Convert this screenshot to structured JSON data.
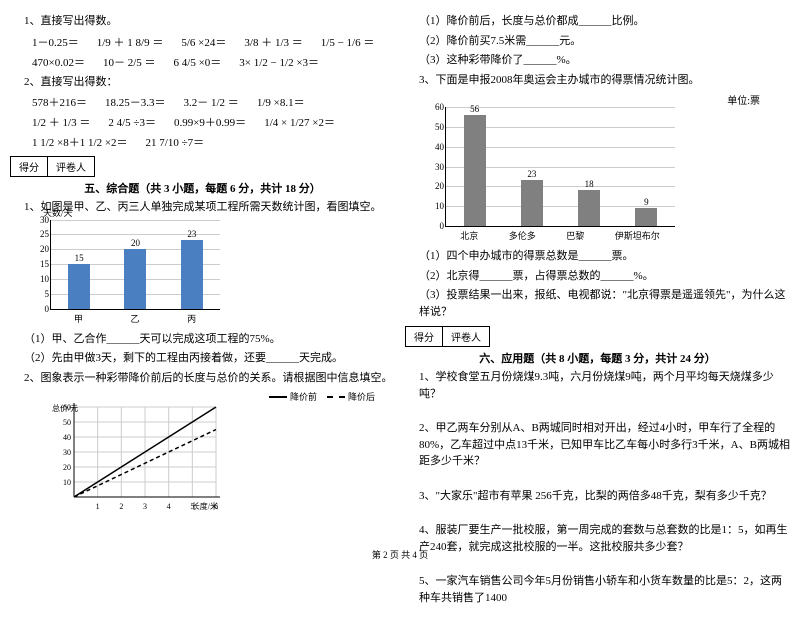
{
  "left": {
    "q1": {
      "title": "1、直接写出得数。"
    },
    "eq1": [
      "1－0.25＝",
      "1/9 ＋ 1 8/9 ＝",
      "5/6 ×24＝",
      "3/8 ＋ 1/3 ＝",
      "1/5 − 1/6 ＝",
      "470×0.02＝",
      "10－ 2/5 ＝",
      "6 4/5 ×0＝",
      "3× 1/2 − 1/2 ×3＝"
    ],
    "q2": {
      "title": "2、直接写出得数："
    },
    "eq2": [
      "578＋216＝",
      "18.25－3.3＝",
      "3.2－ 1/2 ＝",
      "1/9 ×8.1＝",
      "1/2 ＋ 1/3 ＝",
      "2 4/5 ÷3＝",
      "0.99×9＋0.99＝",
      "1/4 × 1/27 ×2＝",
      "1 1/2 ×8＋1 1/2 ×2＝",
      "21 7/10 ÷7＝"
    ],
    "score": [
      "得分",
      "评卷人"
    ],
    "sec5": "五、综合题（共 3 小题，每题 6 分，共计 18 分）",
    "p1": "1、如图是甲、乙、丙三人单独完成某项工程所需天数统计图，看图填空。",
    "chart1": {
      "type": "bar",
      "ytitle": "天数/天",
      "ymax": 30,
      "ystep": 5,
      "bar_color": "#4a7fc1",
      "grid_color": "#cccccc",
      "categories": [
        "甲",
        "乙",
        "丙"
      ],
      "values": [
        15,
        20,
        23
      ]
    },
    "p1_sub1": "（1）甲、乙合作______天可以完成这项工程的75%。",
    "p1_sub2": "（2）先由甲做3天，剩下的工程由丙接着做，还要______天完成。",
    "p2": "2、图象表示一种彩带降价前后的长度与总价的关系。请根据图中信息填空。",
    "chart2": {
      "type": "line",
      "xlabel": "长度/米",
      "ylabel": "总价/元",
      "xticks": [
        1,
        2,
        3,
        4,
        5,
        6
      ],
      "yticks": [
        10,
        20,
        30,
        40,
        50,
        60
      ],
      "grid_color": "#cccccc",
      "axis_color": "#000000",
      "series": [
        {
          "name": "降价前",
          "color": "#000000",
          "dash": "",
          "points": [
            [
              0,
              0
            ],
            [
              6,
              60
            ]
          ]
        },
        {
          "name": "降价后",
          "color": "#000000",
          "dash": "4,3",
          "points": [
            [
              0,
              0
            ],
            [
              6,
              45
            ]
          ]
        }
      ]
    }
  },
  "right": {
    "p2_sub1": "（1）降价前后，长度与总价都成______比例。",
    "p2_sub2": "（2）降价前买7.5米需______元。",
    "p2_sub3": "（3）这种彩带降价了______%。",
    "p3": "3、下面是申报2008年奥运会主办城市的得票情况统计图。",
    "chart3": {
      "type": "bar",
      "unit_label": "单位:票",
      "ymax": 60,
      "ystep": 10,
      "bar_color": "#808080",
      "grid_color": "#cccccc",
      "categories": [
        "北京",
        "多伦多",
        "巴黎",
        "伊斯坦布尔"
      ],
      "values": [
        56,
        23,
        18,
        9
      ]
    },
    "p3_sub1": "（1）四个申办城市的得票总数是______票。",
    "p3_sub2": "（2）北京得______票，占得票总数的______%。",
    "p3_sub3": "（3）投票结果一出来，报纸、电视都说：\"北京得票是遥遥领先\"，为什么这样说？",
    "score": [
      "得分",
      "评卷人"
    ],
    "sec6": "六、应用题（共 8 小题，每题 3 分，共计 24 分）",
    "a1": "1、学校食堂五月份烧煤9.3吨，六月份烧煤9吨，两个月平均每天烧煤多少吨？",
    "a2": "2、甲乙两车分别从A、B两城同时相对开出，经过4小时，甲车行了全程的80%，乙车超过中点13千米，已知甲车比乙车每小时多行3千米，A、B两城相距多少千米？",
    "a3": "3、\"大家乐\"超市有苹果 256千克，比梨的两倍多48千克，梨有多少千克？",
    "a4": "4、服装厂要生产一批校服，第一周完成的套数与总套数的比是1：5，如再生产240套，就完成这批校服的一半。这批校服共多少套？",
    "a5": "5、一家汽车销售公司今年5月份销售小轿车和小货车数量的比是5：2，这两种车共销售了1400"
  },
  "footer": "第 2 页 共 4 页"
}
